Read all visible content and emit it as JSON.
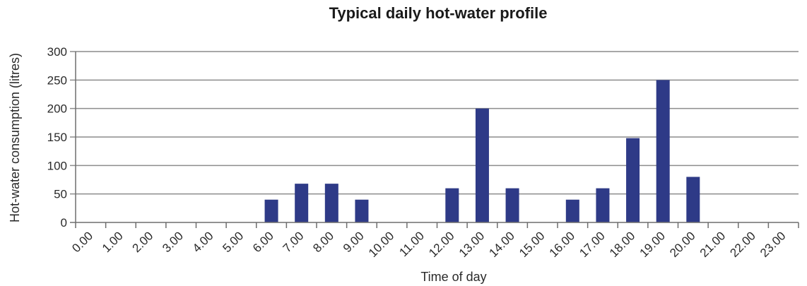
{
  "chart_data": {
    "type": "bar",
    "title": "Typical daily hot-water profile",
    "xlabel": "Time of day",
    "ylabel": "Hot-water consumption  (litres)",
    "ylim": [
      0,
      300
    ],
    "yticks": [
      0,
      50,
      100,
      150,
      200,
      250,
      300
    ],
    "categories": [
      "0.00",
      "1.00",
      "2.00",
      "3.00",
      "4.00",
      "5.00",
      "6.00",
      "7.00",
      "8.00",
      "9.00",
      "10.00",
      "11.00",
      "12.00",
      "13.00",
      "14.00",
      "15.00",
      "16.00",
      "17.00",
      "18.00",
      "19.00",
      "20.00",
      "21.00",
      "22.00",
      "23.00"
    ],
    "values": [
      0,
      0,
      0,
      0,
      0,
      0,
      40,
      68,
      68,
      40,
      0,
      0,
      60,
      200,
      60,
      0,
      40,
      60,
      148,
      250,
      80,
      0,
      0,
      0
    ],
    "grid": true,
    "legend": "none",
    "colors": {
      "bar": "#2e3a87",
      "grid": "#8c8c8c",
      "axis": "#6e6e6e"
    }
  }
}
